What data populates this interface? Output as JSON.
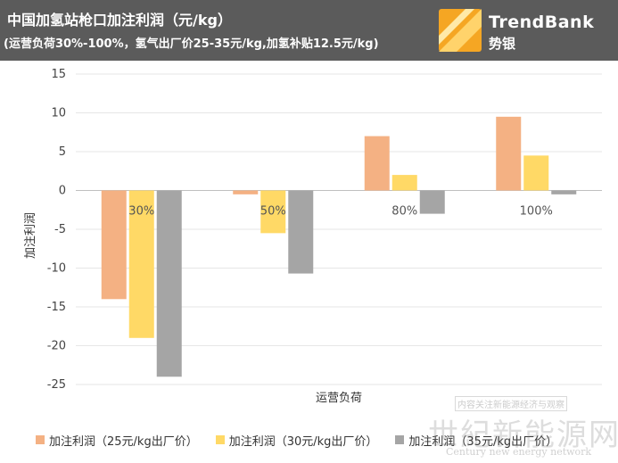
{
  "header": {
    "title": "中国加氢站枪口加注利润（元/kg）",
    "subtitle": "(运营负荷30%-100%，氢气出厂价25-35元/kg,加氢补贴12.5元/kg)",
    "brand_name": "TrendBank",
    "brand_cn": "势银"
  },
  "chart_data": {
    "type": "bar",
    "categories": [
      "30%",
      "50%",
      "80%",
      "100%"
    ],
    "series": [
      {
        "name": "加注利润（25元/kg出厂价）",
        "color": "#f4b183",
        "values": [
          -14,
          -0.5,
          7,
          9.5
        ]
      },
      {
        "name": "加注利润（30元/kg出厂价）",
        "color": "#ffd966",
        "values": [
          -19,
          -5.5,
          2,
          4.5
        ]
      },
      {
        "name": "加注利润（35元/kg出厂价）",
        "color": "#a5a5a5",
        "values": [
          -24,
          -10.7,
          -3,
          -0.5
        ]
      }
    ],
    "ylim": [
      -25,
      15
    ],
    "yticks": [
      15,
      10,
      5,
      0,
      -5,
      -10,
      -15,
      -20,
      -25
    ],
    "xlabel": "运营负荷",
    "ylabel": "加注利润",
    "grid": true,
    "legend": "bottom"
  },
  "watermark": {
    "top": "内容关注新能源经济与观察",
    "main": "世紀新能源网",
    "sub": "Century new energy network"
  }
}
